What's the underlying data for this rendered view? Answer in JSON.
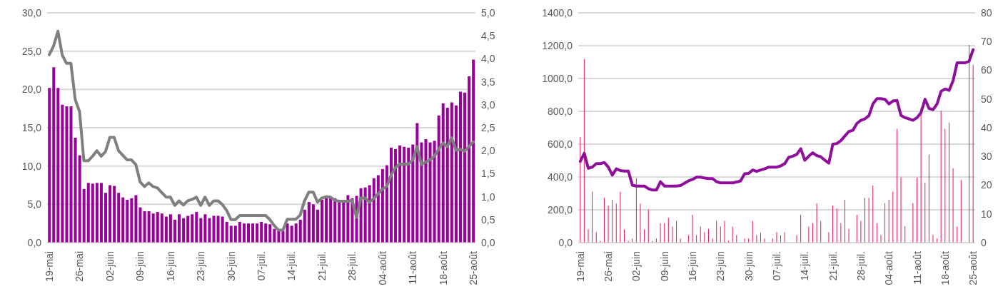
{
  "chart_data": [
    {
      "type": "bar",
      "categories": [
        "19-mai",
        null,
        null,
        null,
        null,
        null,
        null,
        "26-mai",
        null,
        null,
        null,
        null,
        null,
        null,
        "02-juin",
        null,
        null,
        null,
        null,
        null,
        null,
        "09-juin",
        null,
        null,
        null,
        null,
        null,
        null,
        "16-juin",
        null,
        null,
        null,
        null,
        null,
        null,
        "23-juin",
        null,
        null,
        null,
        null,
        null,
        null,
        "30-juin",
        null,
        null,
        null,
        null,
        null,
        null,
        "07-juil.",
        null,
        null,
        null,
        null,
        null,
        null,
        "14-juil.",
        null,
        null,
        null,
        null,
        null,
        null,
        "21-juil.",
        null,
        null,
        null,
        null,
        null,
        null,
        "28-juil.",
        null,
        null,
        null,
        null,
        null,
        null,
        "04-août",
        null,
        null,
        null,
        null,
        null,
        null,
        "11-août",
        null,
        null,
        null,
        null,
        null,
        null,
        "18-août",
        null,
        null,
        null,
        null,
        null,
        null,
        "25-août"
      ],
      "ylim": [
        0,
        30
      ],
      "yticks": [
        {
          "value": 0,
          "label": "0,0"
        },
        {
          "value": 5,
          "label": "5,0"
        },
        {
          "value": 10,
          "label": "10,0"
        },
        {
          "value": 15,
          "label": "15,0"
        },
        {
          "value": 20,
          "label": "20,0"
        },
        {
          "value": 25,
          "label": "25,0"
        },
        {
          "value": 30,
          "label": "30,0"
        }
      ],
      "y2lim": [
        0,
        5
      ],
      "y2ticks": [
        {
          "value": 0,
          "label": "0,0"
        },
        {
          "value": 0.5,
          "label": "0,5"
        },
        {
          "value": 1,
          "label": "1,0"
        },
        {
          "value": 1.5,
          "label": "1,5"
        },
        {
          "value": 2,
          "label": "2,0"
        },
        {
          "value": 2.5,
          "label": "2,5"
        },
        {
          "value": 3,
          "label": "3,0"
        },
        {
          "value": 3.5,
          "label": "3,5"
        },
        {
          "value": 4,
          "label": "4,0"
        },
        {
          "value": 4.5,
          "label": "4,5"
        },
        {
          "value": 5,
          "label": "5,0"
        }
      ],
      "grid": "y",
      "line_style": "solid",
      "series": [
        {
          "color": "#990099",
          "values": [
            20.2,
            22.9,
            20.2,
            18.0,
            17.8,
            17.8,
            13.7,
            11.4,
            7.0,
            7.8,
            7.7,
            7.8,
            7.8,
            6.5,
            7.5,
            7.4,
            6.5,
            5.9,
            5.6,
            5.8,
            6.2,
            4.6,
            4.1,
            4.1,
            3.8,
            4.0,
            3.8,
            3.4,
            3.7,
            3.0,
            3.7,
            3.2,
            3.5,
            3.7,
            4.0,
            3.2,
            3.7,
            3.2,
            3.5,
            3.5,
            3.4,
            2.7,
            2.2,
            2.2,
            2.7,
            2.5,
            2.5,
            2.5,
            2.5,
            2.7,
            2.5,
            2.4,
            1.8,
            1.5,
            1.5,
            2.5,
            2.2,
            2.5,
            3.0,
            4.3,
            5.3,
            5.0,
            4.3,
            5.6,
            6.1,
            5.8,
            5.8,
            5.5,
            5.3,
            6.2,
            5.8,
            6.1,
            7.1,
            7.2,
            7.5,
            8.4,
            8.8,
            9.6,
            10.1,
            12.4,
            12.2,
            12.7,
            12.5,
            12.4,
            12.8,
            15.6,
            13.1,
            13.5,
            13.1,
            13.3,
            16.6,
            18.2,
            17.6,
            18.3,
            17.9,
            19.7,
            19.6,
            21.7,
            23.9
          ]
        },
        {
          "type": "line",
          "axis": "y2",
          "color": "#7f7f7f",
          "values": [
            4.09,
            4.28,
            4.6,
            4.08,
            3.9,
            3.9,
            3.11,
            2.85,
            1.78,
            1.78,
            1.88,
            2.0,
            1.88,
            1.98,
            2.29,
            2.29,
            2.0,
            1.9,
            1.8,
            1.8,
            1.7,
            1.32,
            1.22,
            1.3,
            1.22,
            1.19,
            1.09,
            0.99,
            0.99,
            0.81,
            0.91,
            0.82,
            0.91,
            0.94,
            0.99,
            0.81,
            0.99,
            0.81,
            0.91,
            0.91,
            0.83,
            0.7,
            0.5,
            0.5,
            0.59,
            0.59,
            0.59,
            0.59,
            0.59,
            0.59,
            0.59,
            0.5,
            0.37,
            0.27,
            0.27,
            0.51,
            0.51,
            0.51,
            0.6,
            0.91,
            1.1,
            1.1,
            0.88,
            0.97,
            1.0,
            0.99,
            0.92,
            0.9,
            0.9,
            0.9,
            0.92,
            0.55,
            0.97,
            0.97,
            0.88,
            0.96,
            1.06,
            1.17,
            1.22,
            1.47,
            1.63,
            1.71,
            1.71,
            1.71,
            1.8,
            2.09,
            1.7,
            1.75,
            1.8,
            1.88,
            2.03,
            2.17,
            2.09,
            2.28,
            2.01,
            2.03,
            1.99,
            2.09,
            2.19
          ]
        }
      ]
    },
    {
      "type": "bar",
      "categories": [
        "19-mai",
        null,
        null,
        null,
        null,
        null,
        null,
        "26-mai",
        null,
        null,
        null,
        null,
        null,
        null,
        "02-juin",
        null,
        null,
        null,
        null,
        null,
        null,
        "09-juin",
        null,
        null,
        null,
        null,
        null,
        null,
        "16-juin",
        null,
        null,
        null,
        null,
        null,
        null,
        "23-juin",
        null,
        null,
        null,
        null,
        null,
        null,
        "30-juin",
        null,
        null,
        null,
        null,
        null,
        null,
        "07-juil.",
        null,
        null,
        null,
        null,
        null,
        null,
        "14-juil.",
        null,
        null,
        null,
        null,
        null,
        null,
        "21-juil.",
        null,
        null,
        null,
        null,
        null,
        null,
        "28-juil.",
        null,
        null,
        null,
        null,
        null,
        null,
        "04-août",
        null,
        null,
        null,
        null,
        null,
        null,
        "11-août",
        null,
        null,
        null,
        null,
        null,
        null,
        "18-août",
        null,
        null,
        null,
        null,
        null,
        null,
        "25-août"
      ],
      "ylim": [
        0,
        1400
      ],
      "yticks": [
        {
          "value": 0,
          "label": "0,0"
        },
        {
          "value": 200,
          "label": "200,0"
        },
        {
          "value": 400,
          "label": "400,0"
        },
        {
          "value": 600,
          "label": "600,0"
        },
        {
          "value": 800,
          "label": "800,0"
        },
        {
          "value": 1000,
          "label": "1000,0"
        },
        {
          "value": 1200,
          "label": "1200,0"
        },
        {
          "value": 1400,
          "label": "1400,0"
        }
      ],
      "y2lim": [
        0,
        80
      ],
      "y2ticks": [
        0,
        10,
        20,
        30,
        40,
        50,
        60,
        70,
        80
      ],
      "grid": "y",
      "line_style": "solid",
      "series": [
        {
          "color": "#e8175d",
          "values": [
            642,
            1119,
            81,
            310,
            63,
            11,
            273,
            226,
            261,
            238,
            310,
            81,
            11,
            25,
            393,
            238,
            81,
            203,
            11,
            25,
            119,
            119,
            151,
            98,
            133,
            25,
            null,
            46,
            170,
            46,
            98,
            63,
            84,
            25,
            133,
            98,
            133,
            11,
            98,
            46,
            null,
            25,
            25,
            133,
            46,
            60,
            25,
            null,
            25,
            63,
            46,
            63,
            null,
            null,
            46,
            170,
            null,
            98,
            119,
            240,
            133,
            null,
            63,
            226,
            208,
            119,
            261,
            84,
            null,
            170,
            133,
            273,
            273,
            348,
            119,
            46,
            240,
            261,
            310,
            694,
            397,
            100,
            null,
            240,
            397,
            820,
            365,
            537,
            46,
            25,
            804,
            694,
            731,
            453,
            98,
            383,
            null,
            1203,
            1084
          ]
        },
        {
          "type": "line",
          "axis": "y2",
          "color": "#8e0f9b",
          "values": [
            28.3,
            31.1,
            25.9,
            26.3,
            27.5,
            27.5,
            27.9,
            26.3,
            23.5,
            25.7,
            25.1,
            24.9,
            24.9,
            20.0,
            19.7,
            19.7,
            19.7,
            18.8,
            18.3,
            18.3,
            21.2,
            19.7,
            19.7,
            19.7,
            19.7,
            19.9,
            20.7,
            21.5,
            22.0,
            22.8,
            22.8,
            22.5,
            22.3,
            22.3,
            21.2,
            20.8,
            20.8,
            20.8,
            20.8,
            21.1,
            21.5,
            24.0,
            24.1,
            25.3,
            24.8,
            25.3,
            25.7,
            26.3,
            26.3,
            26.3,
            26.7,
            27.5,
            29.7,
            30.1,
            30.7,
            32.7,
            28.7,
            30.1,
            31.3,
            30.3,
            29.9,
            28.7,
            27.7,
            34.3,
            34.5,
            35.5,
            37.1,
            38.7,
            39.1,
            41.5,
            42.6,
            43.1,
            44.2,
            48.3,
            50.1,
            50.1,
            49.9,
            48.3,
            49.3,
            49.5,
            44.3,
            43.5,
            43.1,
            42.6,
            43.5,
            45.3,
            49.9,
            46.7,
            46.3,
            48.3,
            52.7,
            53.5,
            53.0,
            56.4,
            62.6,
            62.6,
            62.6,
            63.2,
            67.2
          ]
        }
      ]
    }
  ]
}
